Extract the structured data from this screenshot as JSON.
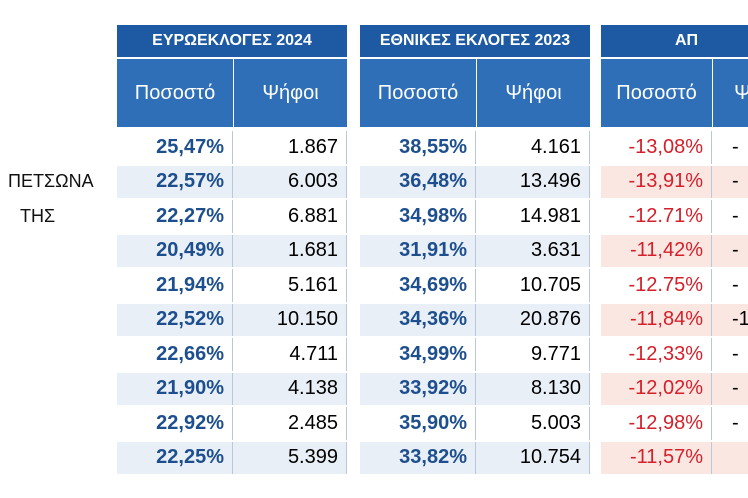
{
  "table": {
    "groups": [
      {
        "title": "ΕΥΡΩΕΚΛΟΓΕΣ 2024",
        "columns": [
          "Ποσοστό",
          "Ψήφοι"
        ]
      },
      {
        "title": "ΕΘΝΙΚΕΣ ΕΚΛΟΓΕΣ 2023",
        "columns": [
          "Ποσοστό",
          "Ψήφοι"
        ]
      },
      {
        "title": "ΑΠ",
        "columns": [
          "Ποσοστό",
          "Ψ"
        ]
      }
    ],
    "rows": [
      {
        "cells": [
          "25,47%",
          "1.867",
          "38,55%",
          "4.161",
          "-13,08%",
          "-"
        ]
      },
      {
        "label": "ΠΕΤΣΩΝΑ",
        "cells": [
          "22,57%",
          "6.003",
          "36,48%",
          "13.496",
          "-13,91%",
          "-"
        ]
      },
      {
        "label": "ΤΗΣ",
        "cells": [
          "22,27%",
          "6.881",
          "34,98%",
          "14.981",
          "-12.71%",
          "-"
        ]
      },
      {
        "cells": [
          "20,49%",
          "1.681",
          "31,91%",
          "3.631",
          "-11,42%",
          "-"
        ]
      },
      {
        "cells": [
          "21,94%",
          "5.161",
          "34,69%",
          "10.705",
          "-12.75%",
          "-"
        ]
      },
      {
        "cells": [
          "22,52%",
          "10.150",
          "34,36%",
          "20.876",
          "-11,84%",
          "-1"
        ]
      },
      {
        "cells": [
          "22,66%",
          "4.711",
          "34,99%",
          "9.771",
          "-12,33%",
          "-"
        ]
      },
      {
        "cells": [
          "21,90%",
          "4.138",
          "33,92%",
          "8.130",
          "-12,02%",
          "-"
        ]
      },
      {
        "cells": [
          "22,92%",
          "2.485",
          "35,90%",
          "5.003",
          "-12,98%",
          "-"
        ]
      },
      {
        "cells": [
          "22,25%",
          "5.399",
          "33,82%",
          "10.754",
          "-11,57%",
          null
        ]
      }
    ]
  }
}
